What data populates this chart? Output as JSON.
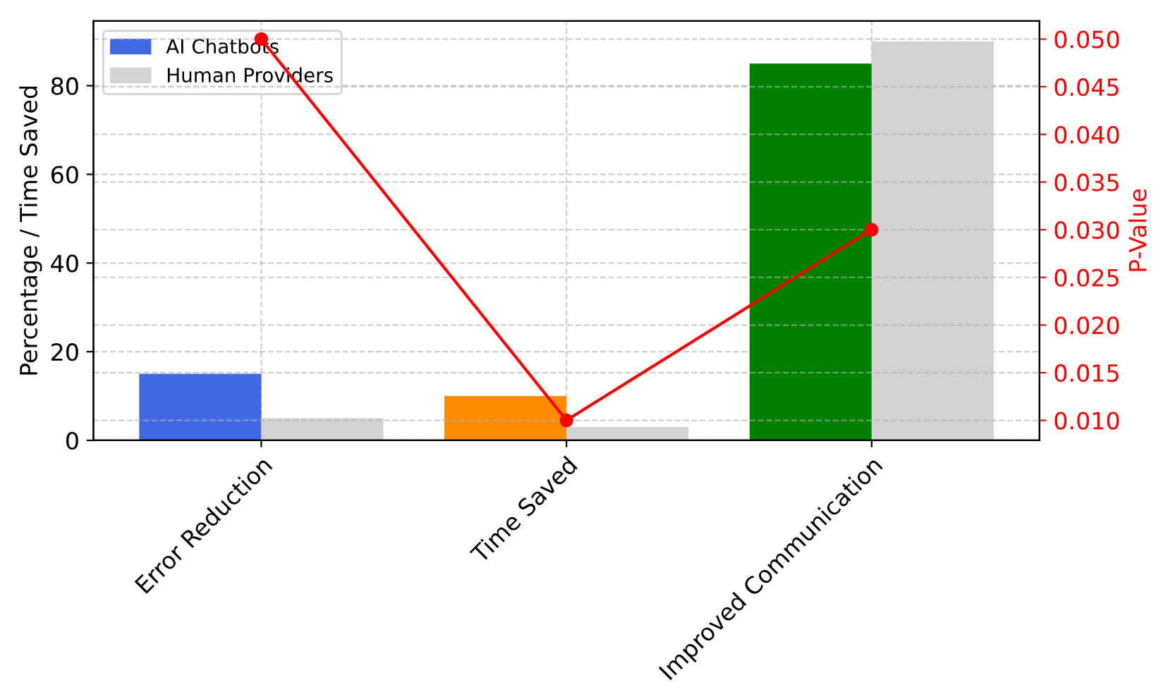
{
  "chart_data": {
    "type": "bar",
    "categories": [
      "Error Reduction",
      "Time Saved",
      "Improved Communication"
    ],
    "ylabel": "Percentage / Time Saved",
    "y2label": "P-Value",
    "series": [
      {
        "name": "AI Chatbots",
        "colors": [
          "#4169e1",
          "#ff8c00",
          "#008000"
        ],
        "color": "#4169e1",
        "values": [
          15,
          10,
          85
        ]
      },
      {
        "name": "Human Providers",
        "color": "#d3d3d3",
        "values": [
          5,
          3,
          90
        ]
      },
      {
        "type": "line",
        "axis": "y2",
        "color": "#ff0000",
        "marker": "circle",
        "values": [
          0.05,
          0.01,
          0.03
        ]
      }
    ],
    "ylim": [
      0,
      94.6
    ],
    "yticks": [
      0,
      20,
      40,
      60,
      80
    ],
    "y2lim": [
      0.0079,
      0.0519
    ],
    "y2ticks": [
      {
        "value": 0.01,
        "label": "0.010"
      },
      0.015,
      {
        "value": 0.02,
        "label": "0.020"
      },
      0.025,
      {
        "value": 0.03,
        "label": "0.030"
      },
      0.035,
      {
        "value": 0.04,
        "label": "0.040"
      },
      0.045,
      {
        "value": 0.05,
        "label": "0.050"
      }
    ],
    "grid": true,
    "legend": "top left"
  }
}
